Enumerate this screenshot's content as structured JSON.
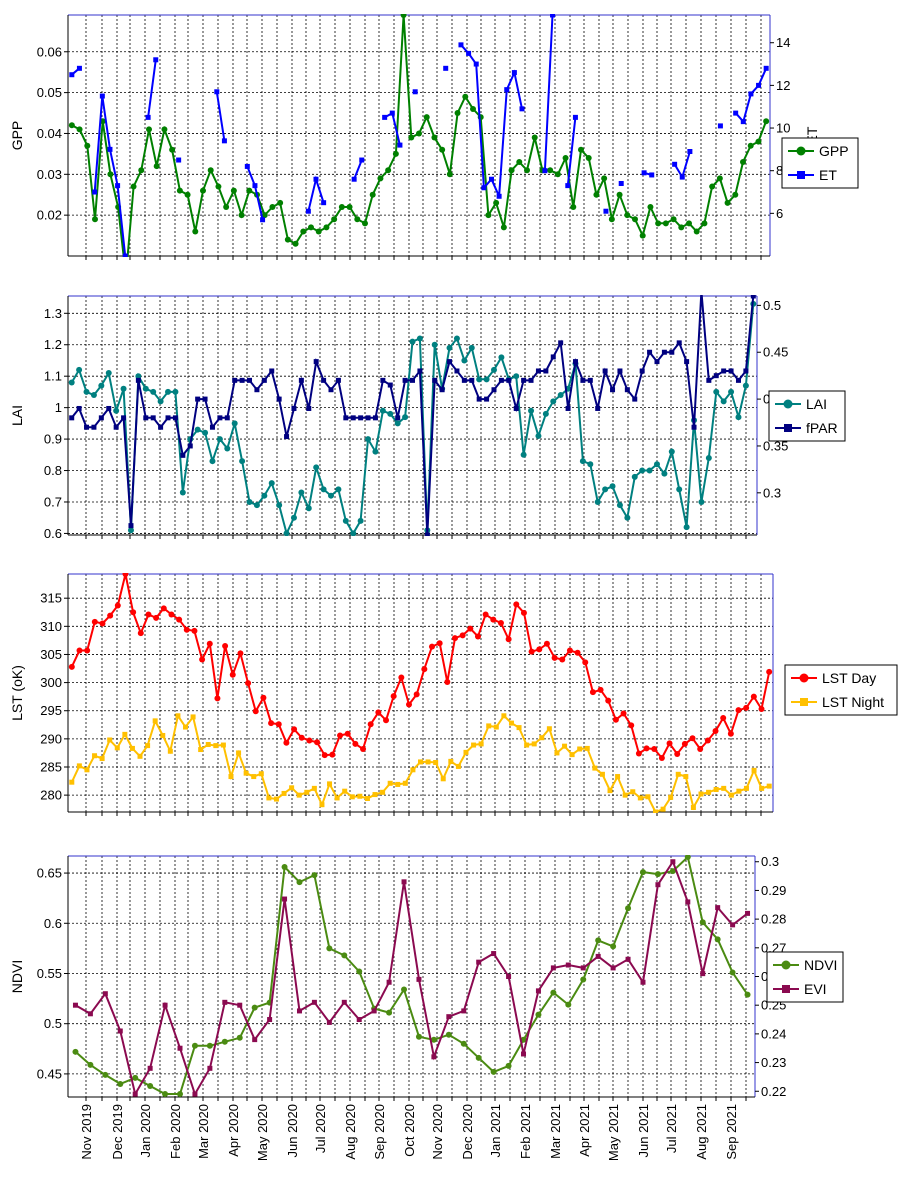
{
  "chart_data": [
    {
      "type": "line",
      "y2_on_right": true,
      "ylabel": "GPP",
      "y2label": "ET",
      "ylim": [
        0.01,
        0.069
      ],
      "y2lim": [
        4.0,
        15.3
      ],
      "yticks": [
        0.02,
        0.03,
        0.04,
        0.05,
        0.06
      ],
      "y2ticks": [
        6,
        8,
        10,
        12,
        14
      ],
      "grid": true,
      "legend_position": "right",
      "series": [
        {
          "name": "GPP",
          "axis": "left",
          "color": "#008000",
          "marker": "circle",
          "values": [
            0.042,
            0.041,
            0.037,
            0.019,
            0.043,
            0.03,
            0.022,
            0.005,
            0.027,
            0.031,
            0.041,
            0.032,
            0.041,
            0.036,
            0.026,
            0.025,
            0.016,
            0.026,
            0.031,
            0.027,
            0.022,
            0.026,
            0.02,
            0.026,
            0.025,
            0.02,
            0.022,
            0.023,
            0.014,
            0.013,
            0.016,
            0.017,
            0.016,
            0.017,
            0.019,
            0.022,
            0.022,
            0.019,
            0.018,
            0.025,
            0.029,
            0.031,
            0.035,
            0.069,
            0.039,
            0.04,
            0.044,
            0.039,
            0.036,
            0.03,
            0.045,
            0.049,
            0.046,
            0.044,
            0.02,
            0.023,
            0.017,
            0.031,
            0.033,
            0.031,
            0.039,
            0.031,
            0.031,
            0.03,
            0.034,
            0.022,
            0.036,
            0.034,
            0.025,
            0.029,
            0.019,
            0.025,
            0.02,
            0.019,
            0.015,
            0.022,
            0.018,
            0.018,
            0.019,
            0.017,
            0.018,
            0.016,
            0.018,
            0.027,
            0.029,
            0.023,
            0.025,
            0.033,
            0.037,
            0.038,
            0.043
          ]
        },
        {
          "name": "ET",
          "axis": "right",
          "color": "#0000ff",
          "marker": "square",
          "values": [
            12.5,
            12.8,
            null,
            7.0,
            11.5,
            9.0,
            7.3,
            4.0,
            null,
            null,
            10.5,
            13.2,
            null,
            null,
            8.5,
            null,
            null,
            null,
            null,
            11.7,
            9.4,
            null,
            null,
            8.2,
            7.3,
            5.7,
            null,
            null,
            null,
            null,
            null,
            6.1,
            7.6,
            6.5,
            null,
            null,
            null,
            7.6,
            8.5,
            null,
            null,
            10.5,
            10.7,
            9.2,
            null,
            11.7,
            null,
            null,
            null,
            12.8,
            null,
            13.9,
            13.5,
            13.0,
            7.2,
            7.6,
            6.8,
            11.8,
            12.6,
            10.9,
            null,
            null,
            8.0,
            15.3,
            null,
            7.3,
            10.5,
            null,
            null,
            null,
            6.1,
            null,
            7.4,
            null,
            null,
            7.9,
            7.8,
            null,
            null,
            8.3,
            7.7,
            8.9,
            null,
            null,
            null,
            10.1,
            null,
            10.7,
            10.3,
            11.6,
            12.0,
            12.8
          ]
        }
      ]
    },
    {
      "type": "line",
      "y2_on_right": true,
      "ylabel": "LAI",
      "y2label": "fPAR",
      "ylim": [
        0.595,
        1.355
      ],
      "y2lim": [
        0.255,
        0.51
      ],
      "yticks": [
        0.6,
        0.7,
        0.8,
        0.9,
        1.0,
        1.1,
        1.2,
        1.3
      ],
      "yticklabels": [
        "0.6",
        "0.7",
        "0.8",
        "0.9",
        "1",
        "1.1",
        "1.2",
        "1.3"
      ],
      "y2ticks": [
        0.3,
        0.35,
        0.4,
        0.45,
        0.5
      ],
      "y2ticklabels": [
        "0.3",
        "0.35",
        "0.4",
        "0.45",
        "0.5"
      ],
      "grid": true,
      "legend_position": "right",
      "series": [
        {
          "name": "LAI",
          "axis": "left",
          "color": "#008080",
          "marker": "circle",
          "values": [
            1.08,
            1.12,
            1.05,
            1.04,
            1.07,
            1.11,
            0.99,
            1.06,
            0.61,
            1.1,
            1.06,
            1.05,
            1.02,
            1.05,
            1.05,
            0.73,
            0.9,
            0.93,
            0.92,
            0.83,
            0.9,
            0.87,
            0.95,
            0.83,
            0.7,
            0.69,
            0.72,
            0.76,
            0.69,
            0.6,
            0.65,
            0.73,
            0.68,
            0.81,
            0.74,
            0.72,
            0.74,
            0.64,
            0.6,
            0.64,
            0.9,
            0.86,
            0.99,
            0.98,
            0.95,
            0.97,
            1.21,
            1.22,
            0.61,
            1.2,
            1.06,
            1.19,
            1.22,
            1.15,
            1.19,
            1.09,
            1.09,
            1.12,
            1.16,
            1.09,
            1.1,
            0.85,
            0.99,
            0.91,
            0.98,
            1.02,
            1.04,
            1.06,
            1.14,
            0.83,
            0.82,
            0.7,
            0.74,
            0.75,
            0.69,
            0.65,
            0.78,
            0.8,
            0.8,
            0.82,
            0.79,
            0.86,
            0.74,
            0.62,
            0.96,
            0.7,
            0.84,
            1.05,
            1.02,
            1.05,
            0.97,
            1.07,
            1.33
          ]
        },
        {
          "name": "fPAR",
          "axis": "right",
          "color": "#000080",
          "marker": "square",
          "values": [
            0.38,
            0.39,
            0.37,
            0.37,
            0.38,
            0.39,
            0.37,
            0.38,
            0.265,
            0.42,
            0.38,
            0.38,
            0.37,
            0.38,
            0.38,
            0.34,
            0.35,
            0.4,
            0.4,
            0.37,
            0.38,
            0.38,
            0.42,
            0.42,
            0.42,
            0.41,
            0.42,
            0.43,
            0.4,
            0.36,
            0.39,
            0.42,
            0.39,
            0.44,
            0.42,
            0.41,
            0.42,
            0.38,
            0.38,
            0.38,
            0.38,
            0.38,
            0.42,
            0.415,
            0.38,
            0.42,
            0.42,
            0.43,
            0.255,
            0.42,
            0.41,
            0.44,
            0.43,
            0.42,
            0.42,
            0.4,
            0.4,
            0.41,
            0.42,
            0.42,
            0.39,
            0.42,
            0.42,
            0.43,
            0.43,
            0.445,
            0.46,
            0.39,
            0.44,
            0.42,
            0.42,
            0.39,
            0.43,
            0.41,
            0.43,
            0.41,
            0.4,
            0.43,
            0.45,
            0.44,
            0.45,
            0.45,
            0.46,
            0.44,
            0.37,
            0.515,
            0.42,
            0.425,
            0.43,
            0.43,
            0.42,
            0.43,
            0.51
          ]
        }
      ]
    },
    {
      "type": "line",
      "ylabel": "LST (oK)",
      "ylim": [
        277,
        319.3
      ],
      "yticks": [
        280,
        285,
        290,
        295,
        300,
        305,
        310,
        315
      ],
      "grid": true,
      "legend_position": "right",
      "series": [
        {
          "name": "LST Day",
          "axis": "left",
          "color": "#ff0000",
          "marker": "circle",
          "values": [
            302.8,
            305.7,
            305.7,
            310.8,
            310.5,
            311.9,
            313.7,
            319.3,
            312.5,
            308.8,
            312.1,
            311.5,
            313.2,
            312.1,
            311.2,
            309.4,
            309.2,
            304.1,
            306.9,
            297.2,
            306.5,
            301.4,
            305.2,
            299.9,
            294.9,
            297.3,
            292.8,
            292.6,
            289.3,
            291.7,
            290.2,
            289.7,
            289.4,
            287.1,
            287.2,
            290.6,
            290.9,
            289.1,
            288.2,
            292.6,
            294.7,
            293.3,
            297.6,
            300.9,
            296.1,
            297.9,
            302.4,
            306.4,
            307.0,
            300.1,
            307.9,
            308.4,
            309.6,
            308.2,
            312.1,
            311.2,
            310.6,
            307.7,
            313.9,
            312.4,
            305.5,
            305.9,
            306.9,
            304.4,
            304.1,
            305.7,
            305.3,
            303.6,
            298.3,
            298.7,
            296.8,
            293.4,
            294.5,
            292.4,
            287.4,
            288.3,
            288.2,
            286.6,
            289.2,
            287.3,
            289.1,
            290.1,
            288.2,
            289.7,
            291.4,
            293.7,
            290.9,
            295.1,
            295.5,
            297.5,
            295.3,
            301.9
          ]
        },
        {
          "name": "LST Night",
          "axis": "left",
          "color": "#ffc000",
          "marker": "square",
          "values": [
            282.3,
            285.2,
            284.5,
            287.0,
            286.5,
            289.8,
            288.4,
            290.8,
            288.3,
            286.9,
            288.8,
            293.2,
            290.6,
            287.8,
            294.1,
            292.1,
            293.9,
            288.1,
            289.0,
            288.8,
            288.9,
            283.3,
            287.5,
            283.9,
            283.3,
            283.8,
            279.5,
            279.3,
            280.3,
            281.3,
            280.0,
            280.5,
            281.2,
            278.3,
            282.0,
            279.5,
            280.7,
            279.7,
            279.8,
            279.4,
            280.1,
            280.5,
            282.1,
            281.9,
            282.1,
            284.5,
            285.9,
            285.9,
            285.8,
            282.9,
            286.0,
            285.1,
            287.6,
            288.9,
            289.1,
            292.3,
            292.1,
            294.1,
            292.8,
            292.0,
            288.9,
            289.1,
            290.2,
            291.8,
            287.5,
            288.7,
            287.2,
            288.2,
            288.3,
            284.8,
            283.7,
            280.8,
            283.3,
            280.0,
            280.6,
            279.5,
            279.7,
            277.0,
            277.5,
            279.6,
            283.7,
            283.3,
            277.8,
            280.2,
            280.5,
            281.0,
            281.2,
            280.0,
            280.7,
            281.2,
            284.4,
            281.2,
            281.6
          ]
        }
      ]
    },
    {
      "type": "line",
      "y2_on_right": true,
      "ylabel": "NDVI",
      "y2label": "EVI",
      "ylim": [
        0.427,
        0.667
      ],
      "y2lim": [
        0.218,
        0.302
      ],
      "yticks": [
        0.45,
        0.5,
        0.55,
        0.6,
        0.65
      ],
      "yticklabels": [
        "0.45",
        "0.5",
        "0.55",
        "0.6",
        "0.65"
      ],
      "y2ticks": [
        0.22,
        0.23,
        0.24,
        0.25,
        0.26,
        0.27,
        0.28,
        0.29,
        0.3
      ],
      "y2ticklabels": [
        "0.22",
        "0.23",
        "0.24",
        "0.25",
        "0.26",
        "0.27",
        "0.28",
        "0.29",
        "0.3"
      ],
      "grid": true,
      "legend_position": "right",
      "series": [
        {
          "name": "NDVI",
          "axis": "left",
          "color": "#4b8b12",
          "marker": "circle",
          "values": [
            0.472,
            0.459,
            0.449,
            0.44,
            0.446,
            0.438,
            0.43,
            0.43,
            0.478,
            0.478,
            0.482,
            0.486,
            0.516,
            0.521,
            0.656,
            0.641,
            0.648,
            0.575,
            0.568,
            0.552,
            0.515,
            0.511,
            0.534,
            0.487,
            0.484,
            0.489,
            0.48,
            0.466,
            0.452,
            0.458,
            0.484,
            0.509,
            0.531,
            0.519,
            0.544,
            0.583,
            0.577,
            0.615,
            0.651,
            0.649,
            0.652,
            0.666,
            0.601,
            0.584,
            0.551,
            0.529
          ]
        },
        {
          "name": "EVI",
          "axis": "right",
          "color": "#8b0a50",
          "marker": "square",
          "values": [
            0.25,
            0.247,
            0.254,
            0.241,
            0.219,
            0.228,
            0.25,
            0.235,
            0.219,
            0.228,
            0.251,
            0.25,
            0.238,
            0.245,
            0.287,
            0.248,
            0.251,
            0.244,
            0.251,
            0.245,
            0.248,
            0.258,
            0.293,
            0.259,
            0.232,
            0.246,
            0.248,
            0.265,
            0.268,
            0.26,
            0.233,
            0.255,
            0.263,
            0.264,
            0.263,
            0.267,
            0.263,
            0.266,
            0.258,
            0.292,
            0.3,
            0.286,
            0.261,
            0.284,
            0.278,
            0.282
          ]
        }
      ]
    }
  ],
  "x_axis": {
    "month_labels": [
      "Nov 2019",
      "Dec 2019",
      "Jan 2020",
      "Feb 2020",
      "Mar 2020",
      "Apr 2020",
      "May 2020",
      "Jun 2020",
      "Jul 2020",
      "Aug 2020",
      "Sep 2020",
      "Oct 2020",
      "Nov 2020",
      "Dec 2020",
      "Jan 2021",
      "Feb 2021",
      "Mar 2021",
      "Apr 2021",
      "May 2021",
      "Jun 2021",
      "Jul 2021",
      "Aug 2021",
      "Sep 2021"
    ]
  }
}
